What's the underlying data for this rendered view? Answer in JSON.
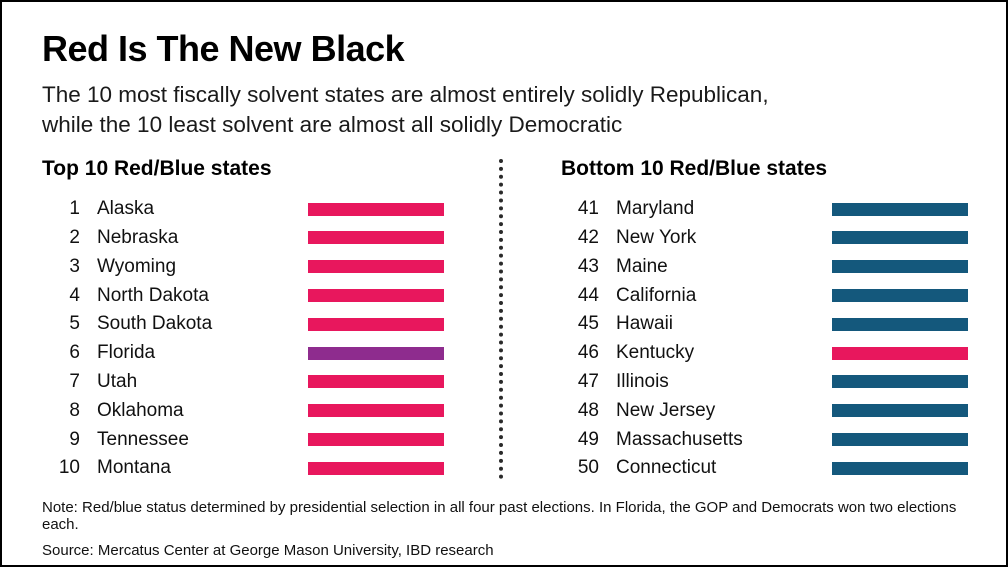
{
  "title": "Red Is The New Black",
  "subtitle": {
    "line1": "The 10 most fiscally solvent states are almost entirely solidly Republican,",
    "line2": "while the 10 least solvent are almost all solidly Democratic"
  },
  "colors": {
    "red": "#E8175D",
    "purple": "#8E2C8E",
    "blue": "#14587C"
  },
  "columns": [
    {
      "header": "Top 10 Red/Blue states",
      "rows": [
        {
          "rank": "1",
          "state": "Alaska",
          "party": "red"
        },
        {
          "rank": "2",
          "state": "Nebraska",
          "party": "red"
        },
        {
          "rank": "3",
          "state": "Wyoming",
          "party": "red"
        },
        {
          "rank": "4",
          "state": "North Dakota",
          "party": "red"
        },
        {
          "rank": "5",
          "state": "South Dakota",
          "party": "red"
        },
        {
          "rank": "6",
          "state": "Florida",
          "party": "purple"
        },
        {
          "rank": "7",
          "state": "Utah",
          "party": "red"
        },
        {
          "rank": "8",
          "state": "Oklahoma",
          "party": "red"
        },
        {
          "rank": "9",
          "state": "Tennessee",
          "party": "red"
        },
        {
          "rank": "10",
          "state": "Montana",
          "party": "red"
        }
      ]
    },
    {
      "header": "Bottom 10 Red/Blue states",
      "rows": [
        {
          "rank": "41",
          "state": "Maryland",
          "party": "blue"
        },
        {
          "rank": "42",
          "state": "New York",
          "party": "blue"
        },
        {
          "rank": "43",
          "state": "Maine",
          "party": "blue"
        },
        {
          "rank": "44",
          "state": "California",
          "party": "blue"
        },
        {
          "rank": "45",
          "state": "Hawaii",
          "party": "blue"
        },
        {
          "rank": "46",
          "state": "Kentucky",
          "party": "red"
        },
        {
          "rank": "47",
          "state": "Illinois",
          "party": "blue"
        },
        {
          "rank": "48",
          "state": "New Jersey",
          "party": "blue"
        },
        {
          "rank": "49",
          "state": "Massachusetts",
          "party": "blue"
        },
        {
          "rank": "50",
          "state": "Connecticut",
          "party": "blue"
        }
      ]
    }
  ],
  "note": "Note: Red/blue status determined by presidential selection in all four past elections. In Florida, the GOP and Democrats won two elections each.",
  "source": "Source: Mercatus Center at George Mason University, IBD research",
  "chart_data": {
    "type": "table",
    "title": "Red Is The New Black",
    "subtitle": "The 10 most fiscally solvent states are almost entirely solidly Republican, while the 10 least solvent are almost all solidly Democratic",
    "legend_meaning": "Bar color indicates party alignment over the past four presidential elections: red = Republican, blue = Democratic, purple = split",
    "groups": [
      {
        "label": "Top 10 Red/Blue states",
        "rows": [
          {
            "rank": 1,
            "state": "Alaska",
            "alignment": "Republican (red)"
          },
          {
            "rank": 2,
            "state": "Nebraska",
            "alignment": "Republican (red)"
          },
          {
            "rank": 3,
            "state": "Wyoming",
            "alignment": "Republican (red)"
          },
          {
            "rank": 4,
            "state": "North Dakota",
            "alignment": "Republican (red)"
          },
          {
            "rank": 5,
            "state": "South Dakota",
            "alignment": "Republican (red)"
          },
          {
            "rank": 6,
            "state": "Florida",
            "alignment": "Split (purple)"
          },
          {
            "rank": 7,
            "state": "Utah",
            "alignment": "Republican (red)"
          },
          {
            "rank": 8,
            "state": "Oklahoma",
            "alignment": "Republican (red)"
          },
          {
            "rank": 9,
            "state": "Tennessee",
            "alignment": "Republican (red)"
          },
          {
            "rank": 10,
            "state": "Montana",
            "alignment": "Republican (red)"
          }
        ]
      },
      {
        "label": "Bottom 10 Red/Blue states",
        "rows": [
          {
            "rank": 41,
            "state": "Maryland",
            "alignment": "Democratic (blue)"
          },
          {
            "rank": 42,
            "state": "New York",
            "alignment": "Democratic (blue)"
          },
          {
            "rank": 43,
            "state": "Maine",
            "alignment": "Democratic (blue)"
          },
          {
            "rank": 44,
            "state": "California",
            "alignment": "Democratic (blue)"
          },
          {
            "rank": 45,
            "state": "Hawaii",
            "alignment": "Democratic (blue)"
          },
          {
            "rank": 46,
            "state": "Kentucky",
            "alignment": "Republican (red)"
          },
          {
            "rank": 47,
            "state": "Illinois",
            "alignment": "Democratic (blue)"
          },
          {
            "rank": 48,
            "state": "New Jersey",
            "alignment": "Democratic (blue)"
          },
          {
            "rank": 49,
            "state": "Massachusetts",
            "alignment": "Democratic (blue)"
          },
          {
            "rank": 50,
            "state": "Connecticut",
            "alignment": "Democratic (blue)"
          }
        ]
      }
    ]
  }
}
